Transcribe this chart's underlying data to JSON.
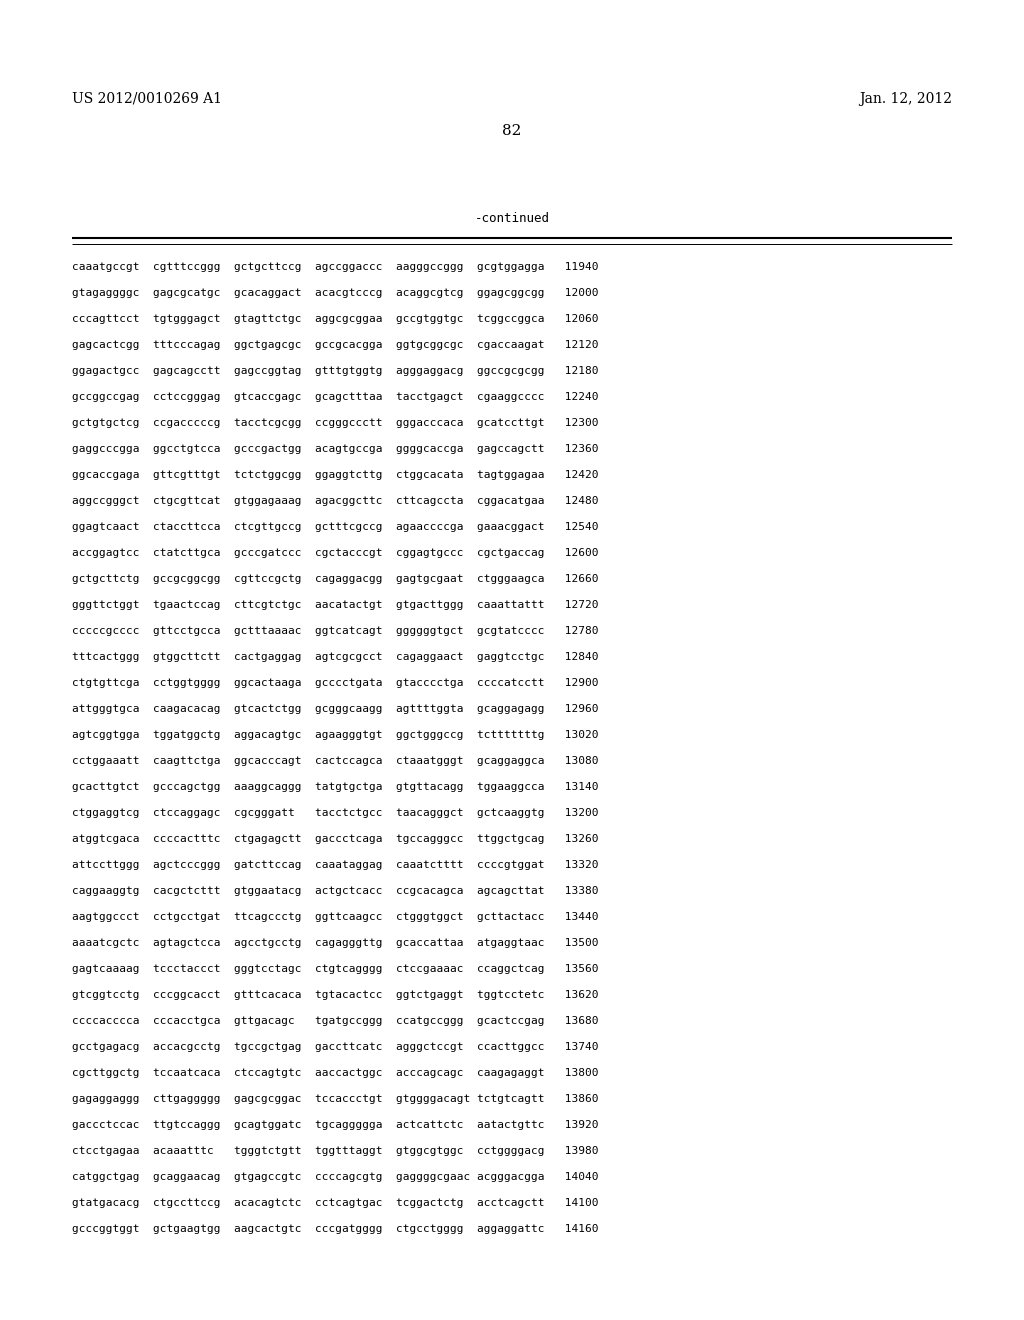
{
  "header_left": "US 2012/0010269 A1",
  "header_right": "Jan. 12, 2012",
  "page_number": "82",
  "continued_label": "-continued",
  "background_color": "#ffffff",
  "text_color": "#000000",
  "sequence_lines": [
    "caaatgccgt  cgtttccggg  gctgcttccg  agccggaccc  aagggccggg  gcgtggagga   11940",
    "gtagaggggc  gagcgcatgc  gcacaggact  acacgtcccg  acaggcgtcg  ggagcggcgg   12000",
    "cccagttcct  tgtgggagct  gtagttctgc  aggcgcggaa  gccgtggtgc  tcggccggca   12060",
    "gagcactcgg  tttcccagag  ggctgagcgc  gccgcacgga  ggtgcggcgc  cgaccaagat   12120",
    "ggagactgcc  gagcagcctt  gagccggtag  gtttgtggtg  agggaggacg  ggccgcgcgg   12180",
    "gccggccgag  cctccgggag  gtcaccgagc  gcagctttaa  tacctgagct  cgaaggcccc   12240",
    "gctgtgctcg  ccgacccccg  tacctcgcgg  ccgggccctt  gggacccaca  gcatccttgt   12300",
    "gaggcccgga  ggcctgtcca  gcccgactgg  acagtgccga  ggggcaccga  gagccagctt   12360",
    "ggcaccgaga  gttcgtttgt  tctctggcgg  ggaggtcttg  ctggcacata  tagtggagaa   12420",
    "aggccgggct  ctgcgttcat  gtggagaaag  agacggcttc  cttcagccta  cggacatgaa   12480",
    "ggagtcaact  ctaccttcca  ctcgttgccg  gctttcgccg  agaaccccga  gaaacggact   12540",
    "accggagtcc  ctatcttgca  gcccgatccc  cgctacccgt  cggagtgccc  cgctgaccag   12600",
    "gctgcttctg  gccgcggcgg  cgttccgctg  cagaggacgg  gagtgcgaat  ctgggaagca   12660",
    "gggttctggt  tgaactccag  cttcgtctgc  aacatactgt  gtgacttggg  caaattattt   12720",
    "cccccgcccc  gttcctgcca  gctttaaaac  ggtcatcagt  ggggggtgct  gcgtatcccc   12780",
    "tttcactggg  gtggcttctt  cactgaggag  agtcgcgcct  cagaggaact  gaggtcctgc   12840",
    "ctgtgttcga  cctggtgggg  ggcactaaga  gcccctgata  gtacccctga  ccccatcctt   12900",
    "attgggtgca  caagacacag  gtcactctgg  gcgggcaagg  agttttggta  gcaggagagg   12960",
    "agtcggtgga  tggatggctg  aggacagtgc  agaagggtgt  ggctgggccg  tctttttttg   13020",
    "cctggaaatt  caagttctga  ggcacccagt  cactccagca  ctaaatgggt  gcaggaggca   13080",
    "gcacttgtct  gcccagctgg  aaaggcaggg  tatgtgctga  gtgttacagg  tggaaggcca   13140",
    "ctggaggtcg  ctccaggagc  cgcgggatt   tacctctgcc  taacagggct  gctcaaggtg   13200",
    "atggtcgaca  ccccactttc  ctgagagctt  gaccctcaga  tgccagggcc  ttggctgcag   13260",
    "attccttggg  agctcccggg  gatcttccag  caaataggag  caaatctttt  ccccgtggat   13320",
    "caggaaggtg  cacgctcttt  gtggaatacg  actgctcacc  ccgcacagca  agcagcttat   13380",
    "aagtggccct  cctgcctgat  ttcagccctg  ggttcaagcc  ctgggtggct  gcttactacc   13440",
    "aaaatcgctc  agtagctcca  agcctgcctg  cagagggttg  gcaccattaa  atgaggtaac   13500",
    "gagtcaaaag  tccctaccct  gggtcctagc  ctgtcagggg  ctccgaaaac  ccaggctcag   13560",
    "gtcggtcctg  cccggcacct  gtttcacaca  tgtacactcc  ggtctgaggt  tggtcctetc   13620",
    "ccccacccca  cccacctgca  gttgacagc   tgatgccggg  ccatgccggg  gcactccgag   13680",
    "gcctgagacg  accacgcctg  tgccgctgag  gaccttcatc  agggctccgt  ccacttggcc   13740",
    "cgcttggctg  tccaatcaca  ctccagtgtc  aaccactggc  acccagcagc  caagagaggt   13800",
    "gagaggaggg  cttgaggggg  gagcgcggac  tccaccctgt  gtggggacagt tctgtcagtt   13860",
    "gaccctccac  ttgtccaggg  gcagtggatc  tgcaggggga  actcattctc  aatactgttc   13920",
    "ctcctgagaa  acaaatttc   tgggtctgtt  tggtttaggt  gtggcgtggc  cctggggacg   13980",
    "catggctgag  gcaggaacag  gtgagccgtc  ccccagcgtg  gaggggcgaac acgggacgga   14040",
    "gtatgacacg  ctgccttccg  acacagtctc  cctcagtgac  tcggactctg  acctcagctt   14100",
    "gcccggtggt  gctgaagtgg  aagcactgtc  cccgatgggg  ctgcctgggg  aggaggattc   14160"
  ]
}
